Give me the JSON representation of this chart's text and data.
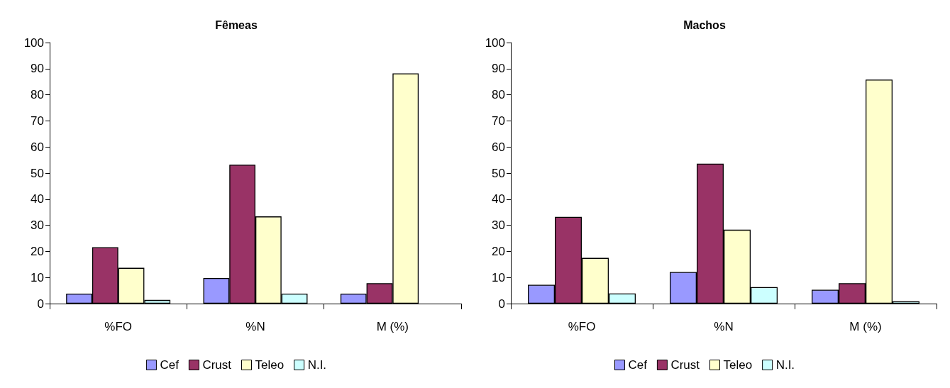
{
  "chart_data": [
    {
      "type": "bar",
      "title": "Fêmeas",
      "categories": [
        "%FO",
        "%N",
        "M (%)"
      ],
      "ylim": [
        0,
        100
      ],
      "yticks": [
        0,
        10,
        20,
        30,
        40,
        50,
        60,
        70,
        80,
        90,
        100
      ],
      "grid": false,
      "legend": "bottom",
      "series": [
        {
          "name": "Cef",
          "color": "#9999ff",
          "values": [
            3.8,
            9.8,
            3.8
          ]
        },
        {
          "name": "Crust",
          "color": "#993366",
          "values": [
            21.6,
            53.2,
            7.8
          ]
        },
        {
          "name": "Teleo",
          "color": "#ffffcc",
          "values": [
            13.7,
            33.4,
            88.2
          ]
        },
        {
          "name": "N.I.",
          "color": "#ccffff",
          "values": [
            1.4,
            3.8,
            null
          ]
        }
      ]
    },
    {
      "type": "bar",
      "title": "Machos",
      "categories": [
        "%FO",
        "%N",
        "M (%)"
      ],
      "ylim": [
        0,
        100
      ],
      "yticks": [
        0,
        10,
        20,
        30,
        40,
        50,
        60,
        70,
        80,
        90,
        100
      ],
      "grid": false,
      "legend": "bottom",
      "series": [
        {
          "name": "Cef",
          "color": "#9999ff",
          "values": [
            7.2,
            12.1,
            5.3
          ]
        },
        {
          "name": "Crust",
          "color": "#993366",
          "values": [
            33.2,
            53.6,
            7.8
          ]
        },
        {
          "name": "Teleo",
          "color": "#ffffcc",
          "values": [
            17.5,
            28.3,
            85.8
          ]
        },
        {
          "name": "N.I.",
          "color": "#ccffff",
          "values": [
            3.9,
            6.3,
            0.9
          ]
        }
      ]
    }
  ]
}
